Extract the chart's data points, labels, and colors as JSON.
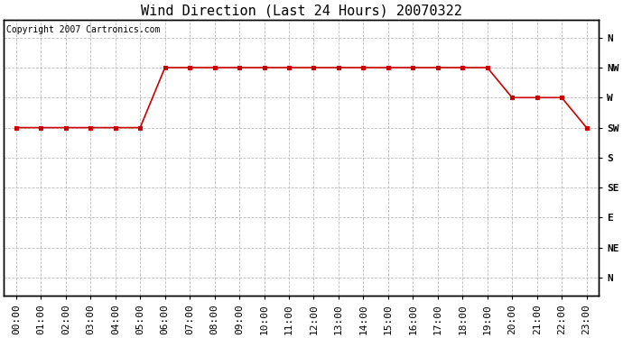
{
  "title": "Wind Direction (Last 24 Hours) 20070322",
  "copyright_text": "Copyright 2007 Cartronics.com",
  "hours": [
    0,
    1,
    2,
    3,
    4,
    5,
    6,
    7,
    8,
    9,
    10,
    11,
    12,
    13,
    14,
    15,
    16,
    17,
    18,
    19,
    20,
    21,
    22,
    23
  ],
  "directions_numeric": [
    3,
    3,
    3,
    3,
    3,
    3,
    1,
    1,
    1,
    1,
    1,
    1,
    1,
    1,
    1,
    1,
    1,
    1,
    1,
    1,
    2,
    2,
    2,
    3
  ],
  "ytick_labels": [
    "N",
    "NW",
    "W",
    "SW",
    "S",
    "SE",
    "E",
    "NE",
    "N"
  ],
  "ytick_values": [
    0,
    1,
    2,
    3,
    4,
    5,
    6,
    7,
    8
  ],
  "line_color": "#cc0000",
  "marker": "s",
  "marker_size": 3,
  "marker_color": "#cc0000",
  "bg_color": "#ffffff",
  "plot_bg_color": "#ffffff",
  "grid_color": "#bbbbbb",
  "title_fontsize": 11,
  "copyright_fontsize": 7,
  "tick_fontsize": 8,
  "xlim": [
    -0.5,
    23.5
  ],
  "ylim": [
    8.6,
    -0.6
  ]
}
